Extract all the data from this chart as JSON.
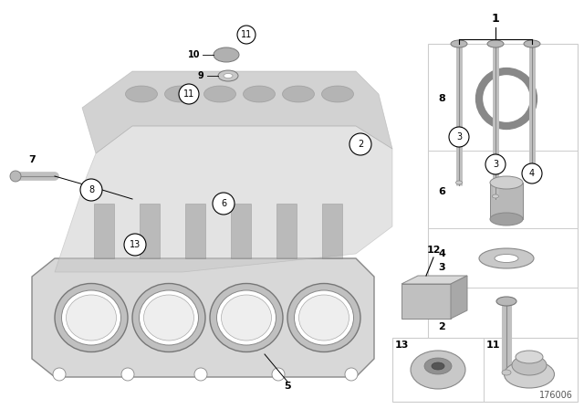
{
  "bg_color": "#ffffff",
  "diagram_id": "176006",
  "panel_border_color": "#cccccc",
  "part_color_light": "#d0d0d0",
  "part_color_mid": "#b0b0b0",
  "part_color_dark": "#888888"
}
